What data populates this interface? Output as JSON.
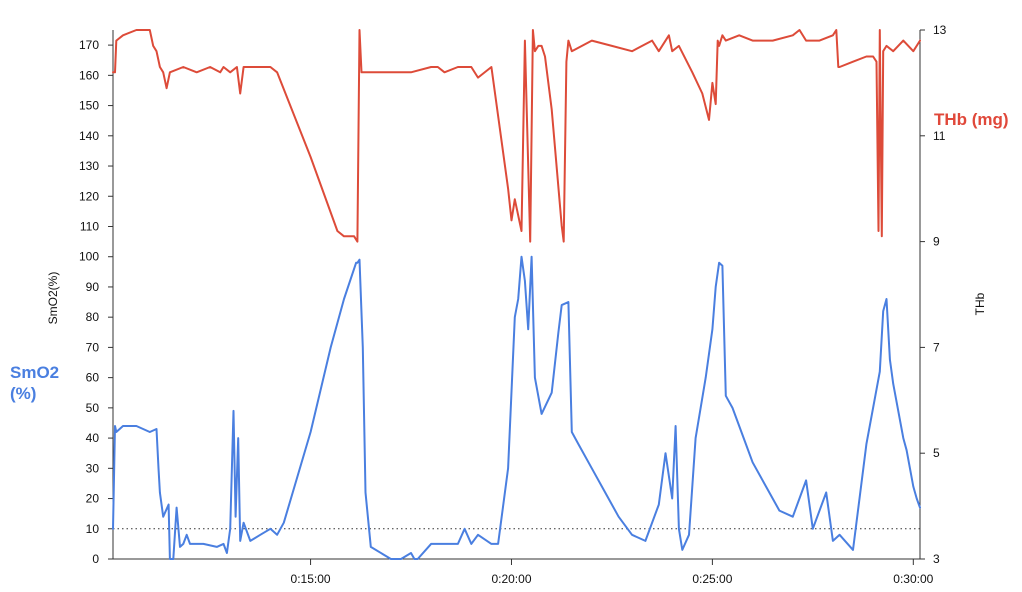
{
  "labels": {
    "left_legend": "SmO2\n(%)",
    "right_legend": "THb (mg)"
  },
  "colors": {
    "smo2": "#4a7fe0",
    "thb": "#dd4b39"
  },
  "chart_data": {
    "type": "line",
    "x_unit": "elapsed time h:mm:ss",
    "xlim": [
      "0:10:05",
      "0:30:10"
    ],
    "x_ticks": [
      "0:15:00",
      "0:20:00",
      "0:25:00",
      "0:30:00"
    ],
    "y_left": {
      "label": "SmO2(%)",
      "ylim": [
        0,
        175
      ],
      "ticks": [
        0,
        10,
        20,
        30,
        40,
        50,
        60,
        70,
        80,
        90,
        100,
        110,
        120,
        130,
        140,
        150,
        160,
        170
      ]
    },
    "y_right": {
      "label": "THb",
      "ylim": [
        3,
        13
      ],
      "ticks": [
        3,
        5,
        7,
        9,
        11,
        13
      ]
    },
    "reference_line": {
      "axis": "left",
      "value": 10,
      "style": "dotted"
    },
    "series": [
      {
        "name": "SmO2 (%)",
        "axis": "left",
        "color": "#4a7fe0",
        "x": [
          "0:10:05",
          "0:10:08",
          "0:10:10",
          "0:10:20",
          "0:10:40",
          "0:11:00",
          "0:11:10",
          "0:11:13",
          "0:11:15",
          "0:11:20",
          "0:11:28",
          "0:11:30",
          "0:11:35",
          "0:11:40",
          "0:11:45",
          "0:11:50",
          "0:11:55",
          "0:12:00",
          "0:12:20",
          "0:12:40",
          "0:12:50",
          "0:12:55",
          "0:13:00",
          "0:13:05",
          "0:13:08",
          "0:13:12",
          "0:13:15",
          "0:13:20",
          "0:13:30",
          "0:13:45",
          "0:14:00",
          "0:14:10",
          "0:14:20",
          "0:15:00",
          "0:15:30",
          "0:15:50",
          "0:16:08",
          "0:16:10",
          "0:16:13",
          "0:16:18",
          "0:16:22",
          "0:16:30",
          "0:17:00",
          "0:17:15",
          "0:17:30",
          "0:17:35",
          "0:17:40",
          "0:18:00",
          "0:18:40",
          "0:18:50",
          "0:19:00",
          "0:19:10",
          "0:19:30",
          "0:19:40",
          "0:19:55",
          "0:20:05",
          "0:20:10",
          "0:20:15",
          "0:20:20",
          "0:20:25",
          "0:20:30",
          "0:20:35",
          "0:20:45",
          "0:21:00",
          "0:21:10",
          "0:21:15",
          "0:21:25",
          "0:21:30",
          "0:21:40",
          "0:22:00",
          "0:22:20",
          "0:22:40",
          "0:23:00",
          "0:23:20",
          "0:23:40",
          "0:23:50",
          "0:24:00",
          "0:24:05",
          "0:24:10",
          "0:24:15",
          "0:24:25",
          "0:24:35",
          "0:24:50",
          "0:25:00",
          "0:25:05",
          "0:25:10",
          "0:25:15",
          "0:25:20",
          "0:25:30",
          "0:25:50",
          "0:26:00",
          "0:26:20",
          "0:26:40",
          "0:27:00",
          "0:27:20",
          "0:27:30",
          "0:27:50",
          "0:28:00",
          "0:28:10",
          "0:28:30",
          "0:28:50",
          "0:29:10",
          "0:29:15",
          "0:29:20",
          "0:29:25",
          "0:29:30",
          "0:29:45",
          "0:29:50",
          "0:30:00",
          "0:30:05",
          "0:30:10"
        ],
        "values": [
          10,
          44,
          42,
          44,
          44,
          42,
          43,
          30,
          22,
          14,
          18,
          0,
          0,
          17,
          4,
          5,
          8,
          5,
          5,
          4,
          5,
          2,
          10,
          49,
          14,
          40,
          6,
          12,
          6,
          8,
          10,
          8,
          12,
          42,
          70,
          86,
          98,
          98,
          99,
          70,
          22,
          4,
          0,
          0,
          2,
          0,
          0,
          5,
          5,
          10,
          5,
          8,
          5,
          5,
          30,
          80,
          86,
          100,
          92,
          76,
          100,
          60,
          48,
          55,
          75,
          84,
          85,
          42,
          38,
          30,
          22,
          14,
          8,
          6,
          18,
          35,
          20,
          44,
          10,
          3,
          8,
          40,
          60,
          76,
          90,
          98,
          97,
          54,
          50,
          38,
          32,
          24,
          16,
          14,
          26,
          10,
          22,
          6,
          8,
          3,
          38,
          62,
          82,
          86,
          66,
          58,
          40,
          36,
          24,
          20,
          17
        ]
      },
      {
        "name": "THb (mg)",
        "axis": "right",
        "color": "#dd4b39",
        "x": [
          "0:10:05",
          "0:10:08",
          "0:10:10",
          "0:10:20",
          "0:10:40",
          "0:11:00",
          "0:11:05",
          "0:11:10",
          "0:11:15",
          "0:11:20",
          "0:11:25",
          "0:11:30",
          "0:11:50",
          "0:12:10",
          "0:12:30",
          "0:12:45",
          "0:12:50",
          "0:13:00",
          "0:13:10",
          "0:13:15",
          "0:13:20",
          "0:13:40",
          "0:14:00",
          "0:14:10",
          "0:15:00",
          "0:15:40",
          "0:15:50",
          "0:16:05",
          "0:16:10",
          "0:16:13",
          "0:16:16",
          "0:16:30",
          "0:17:00",
          "0:17:30",
          "0:18:00",
          "0:18:10",
          "0:18:20",
          "0:18:40",
          "0:19:00",
          "0:19:10",
          "0:19:30",
          "0:19:55",
          "0:20:00",
          "0:20:05",
          "0:20:15",
          "0:20:20",
          "0:20:28",
          "0:20:32",
          "0:20:35",
          "0:20:40",
          "0:20:45",
          "0:20:50",
          "0:21:00",
          "0:21:15",
          "0:21:18",
          "0:21:22",
          "0:21:25",
          "0:21:30",
          "0:22:00",
          "0:22:30",
          "0:23:00",
          "0:23:15",
          "0:23:30",
          "0:23:40",
          "0:23:55",
          "0:24:00",
          "0:24:10",
          "0:24:30",
          "0:24:45",
          "0:24:55",
          "0:25:00",
          "0:25:05",
          "0:25:08",
          "0:25:10",
          "0:25:15",
          "0:25:20",
          "0:25:40",
          "0:26:00",
          "0:26:30",
          "0:27:00",
          "0:27:10",
          "0:27:20",
          "0:27:40",
          "0:28:00",
          "0:28:05",
          "0:28:08",
          "0:28:10",
          "0:28:30",
          "0:28:50",
          "0:29:00",
          "0:29:05",
          "0:29:08",
          "0:29:10",
          "0:29:13",
          "0:29:15",
          "0:29:20",
          "0:29:30",
          "0:29:45",
          "0:30:00",
          "0:30:10"
        ],
        "values": [
          12.2,
          12.2,
          12.8,
          12.9,
          13.0,
          13.0,
          12.7,
          12.6,
          12.3,
          12.2,
          11.9,
          12.2,
          12.3,
          12.2,
          12.3,
          12.2,
          12.3,
          12.2,
          12.3,
          11.8,
          12.3,
          12.3,
          12.3,
          12.2,
          10.6,
          9.2,
          9.1,
          9.1,
          9.0,
          13.0,
          12.2,
          12.2,
          12.2,
          12.2,
          12.3,
          12.3,
          12.2,
          12.3,
          12.3,
          12.1,
          12.3,
          10.0,
          9.4,
          9.8,
          9.2,
          12.8,
          9.0,
          13.0,
          12.6,
          12.7,
          12.7,
          12.5,
          11.5,
          9.3,
          9.0,
          12.4,
          12.8,
          12.6,
          12.8,
          12.7,
          12.6,
          12.7,
          12.8,
          12.6,
          12.9,
          12.6,
          12.7,
          12.2,
          11.8,
          11.3,
          12.0,
          11.6,
          12.8,
          12.7,
          12.9,
          12.8,
          12.9,
          12.8,
          12.8,
          12.9,
          13.0,
          12.8,
          12.8,
          12.9,
          13.0,
          12.3,
          12.3,
          12.4,
          12.5,
          12.5,
          12.4,
          9.2,
          13.0,
          9.1,
          12.6,
          12.7,
          12.6,
          12.8,
          12.6,
          12.8
        ]
      }
    ]
  }
}
